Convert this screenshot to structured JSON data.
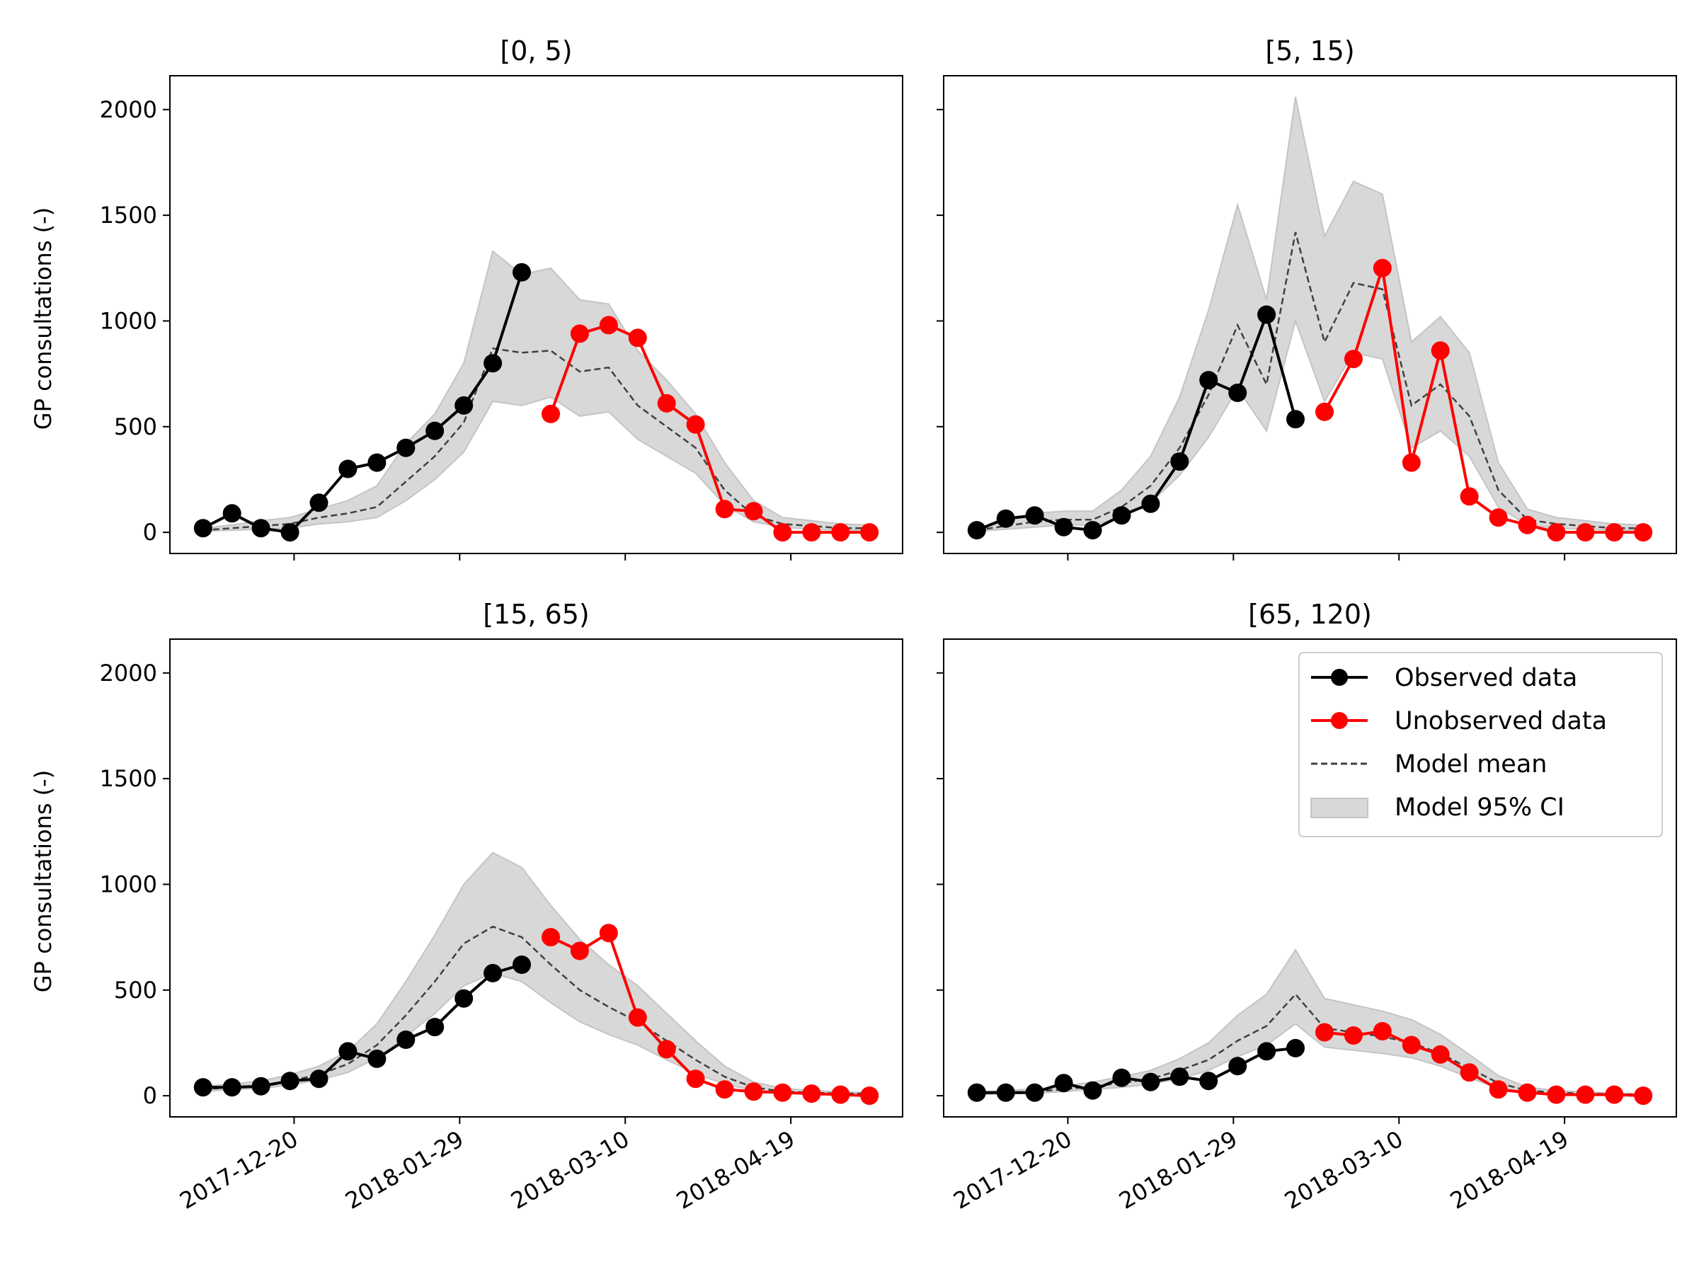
{
  "figure": {
    "ylabel": "GP consultations (-)",
    "legend": {
      "placement": "top-right",
      "entries": [
        "Observed data",
        "Unobserved data",
        "Model mean",
        "Model 95% CI"
      ]
    }
  },
  "colors": {
    "observed": "#000000",
    "unobserved": "#ff0000",
    "mean": "#404040",
    "ci": "#d8d8d8",
    "ci_edge": "#c4c4c4"
  },
  "axes": {
    "ylim": [
      -100,
      2160
    ],
    "yticks": [
      0,
      500,
      1000,
      1500,
      2000
    ],
    "xlim": [
      "2017-11-20",
      "2018-05-16"
    ],
    "xticks": [
      "2017-12-20",
      "2018-01-29",
      "2018-03-10",
      "2018-04-19"
    ],
    "grid": false
  },
  "chart_data": [
    {
      "type": "line",
      "title": "[0, 5)",
      "observed": {
        "x": [
          "2017-11-28",
          "2017-12-05",
          "2017-12-12",
          "2017-12-19",
          "2017-12-26",
          "2018-01-02",
          "2018-01-09",
          "2018-01-16",
          "2018-01-23",
          "2018-01-30",
          "2018-02-06",
          "2018-02-13"
        ],
        "y": [
          20,
          90,
          20,
          0,
          140,
          300,
          330,
          400,
          480,
          600,
          800,
          1230
        ]
      },
      "unobserved": {
        "x": [
          "2018-02-20",
          "2018-02-27",
          "2018-03-06",
          "2018-03-13",
          "2018-03-20",
          "2018-03-27",
          "2018-04-03",
          "2018-04-10",
          "2018-04-17",
          "2018-04-24",
          "2018-05-01",
          "2018-05-08"
        ],
        "y": [
          560,
          940,
          980,
          920,
          610,
          510,
          110,
          100,
          0,
          0,
          0,
          0
        ]
      },
      "model": {
        "x": [
          "2017-11-28",
          "2017-12-05",
          "2017-12-12",
          "2017-12-19",
          "2017-12-26",
          "2018-01-02",
          "2018-01-09",
          "2018-01-16",
          "2018-01-23",
          "2018-01-30",
          "2018-02-06",
          "2018-02-13",
          "2018-02-20",
          "2018-02-27",
          "2018-03-06",
          "2018-03-13",
          "2018-03-20",
          "2018-03-27",
          "2018-04-03",
          "2018-04-10",
          "2018-04-17",
          "2018-04-24",
          "2018-05-01",
          "2018-05-08"
        ],
        "mean": [
          10,
          20,
          30,
          40,
          70,
          90,
          120,
          240,
          360,
          520,
          870,
          850,
          860,
          760,
          780,
          600,
          500,
          400,
          200,
          80,
          40,
          30,
          20,
          20
        ],
        "lower": [
          5,
          10,
          15,
          20,
          40,
          50,
          70,
          150,
          250,
          380,
          620,
          600,
          640,
          550,
          570,
          440,
          360,
          280,
          130,
          50,
          25,
          15,
          10,
          10
        ],
        "upper": [
          20,
          35,
          55,
          70,
          110,
          150,
          220,
          420,
          560,
          800,
          1330,
          1220,
          1250,
          1100,
          1080,
          860,
          720,
          560,
          330,
          150,
          70,
          55,
          40,
          35
        ]
      }
    },
    {
      "type": "line",
      "title": "[5, 15)",
      "observed": {
        "x": [
          "2017-11-28",
          "2017-12-05",
          "2017-12-12",
          "2017-12-19",
          "2017-12-26",
          "2018-01-02",
          "2018-01-09",
          "2018-01-16",
          "2018-01-23",
          "2018-01-30",
          "2018-02-06",
          "2018-02-13"
        ],
        "y": [
          10,
          65,
          80,
          25,
          10,
          80,
          135,
          335,
          720,
          660,
          1030,
          535
        ]
      },
      "unobserved": {
        "x": [
          "2018-02-20",
          "2018-02-27",
          "2018-03-06",
          "2018-03-13",
          "2018-03-20",
          "2018-03-27",
          "2018-04-03",
          "2018-04-10",
          "2018-04-17",
          "2018-04-24",
          "2018-05-01",
          "2018-05-08"
        ],
        "y": [
          570,
          820,
          1250,
          330,
          860,
          170,
          70,
          35,
          0,
          0,
          0,
          0
        ]
      },
      "model": {
        "x": [
          "2017-11-28",
          "2017-12-05",
          "2017-12-12",
          "2017-12-19",
          "2017-12-26",
          "2018-01-02",
          "2018-01-09",
          "2018-01-16",
          "2018-01-23",
          "2018-01-30",
          "2018-02-06",
          "2018-02-13",
          "2018-02-20",
          "2018-02-27",
          "2018-03-06",
          "2018-03-13",
          "2018-03-20",
          "2018-03-27",
          "2018-04-03",
          "2018-04-10",
          "2018-04-17",
          "2018-04-24",
          "2018-05-01",
          "2018-05-08"
        ],
        "mean": [
          10,
          30,
          50,
          60,
          60,
          120,
          220,
          400,
          650,
          980,
          700,
          1420,
          900,
          1180,
          1150,
          600,
          700,
          550,
          200,
          60,
          40,
          30,
          20,
          20
        ],
        "lower": [
          5,
          15,
          25,
          35,
          35,
          70,
          140,
          270,
          450,
          680,
          480,
          1000,
          620,
          850,
          820,
          400,
          480,
          360,
          120,
          35,
          20,
          15,
          10,
          10
        ],
        "upper": [
          20,
          50,
          90,
          100,
          100,
          200,
          360,
          640,
          1050,
          1550,
          1100,
          2060,
          1400,
          1660,
          1600,
          900,
          1020,
          850,
          330,
          110,
          70,
          55,
          40,
          35
        ]
      }
    },
    {
      "type": "line",
      "title": "[15, 65)",
      "observed": {
        "x": [
          "2017-11-28",
          "2017-12-05",
          "2017-12-12",
          "2017-12-19",
          "2017-12-26",
          "2018-01-02",
          "2018-01-09",
          "2018-01-16",
          "2018-01-23",
          "2018-01-30",
          "2018-02-06",
          "2018-02-13"
        ],
        "y": [
          40,
          40,
          45,
          70,
          80,
          210,
          175,
          265,
          325,
          460,
          580,
          620
        ]
      },
      "unobserved": {
        "x": [
          "2018-02-20",
          "2018-02-27",
          "2018-03-06",
          "2018-03-13",
          "2018-03-20",
          "2018-03-27",
          "2018-04-03",
          "2018-04-10",
          "2018-04-17",
          "2018-04-24",
          "2018-05-01",
          "2018-05-08"
        ],
        "y": [
          750,
          685,
          770,
          370,
          220,
          80,
          30,
          20,
          15,
          10,
          5,
          0
        ]
      },
      "model": {
        "x": [
          "2017-11-28",
          "2017-12-05",
          "2017-12-12",
          "2017-12-19",
          "2017-12-26",
          "2018-01-02",
          "2018-01-09",
          "2018-01-16",
          "2018-01-23",
          "2018-01-30",
          "2018-02-06",
          "2018-02-13",
          "2018-02-20",
          "2018-02-27",
          "2018-03-06",
          "2018-03-13",
          "2018-03-20",
          "2018-03-27",
          "2018-04-03",
          "2018-04-10",
          "2018-04-17",
          "2018-04-24",
          "2018-05-01",
          "2018-05-08"
        ],
        "mean": [
          30,
          40,
          50,
          70,
          100,
          150,
          240,
          380,
          540,
          720,
          800,
          750,
          620,
          500,
          420,
          350,
          260,
          170,
          90,
          40,
          20,
          15,
          10,
          10
        ],
        "lower": [
          20,
          30,
          35,
          50,
          75,
          110,
          180,
          280,
          390,
          520,
          580,
          540,
          440,
          350,
          290,
          240,
          170,
          105,
          55,
          25,
          12,
          8,
          5,
          5
        ],
        "upper": [
          45,
          55,
          70,
          100,
          140,
          210,
          340,
          540,
          760,
          1000,
          1150,
          1080,
          900,
          740,
          620,
          520,
          390,
          260,
          140,
          65,
          35,
          25,
          18,
          15
        ]
      }
    },
    {
      "type": "line",
      "title": "[65, 120)",
      "observed": {
        "x": [
          "2017-11-28",
          "2017-12-05",
          "2017-12-12",
          "2017-12-19",
          "2017-12-26",
          "2018-01-02",
          "2018-01-09",
          "2018-01-16",
          "2018-01-23",
          "2018-01-30",
          "2018-02-06",
          "2018-02-13"
        ],
        "y": [
          15,
          15,
          15,
          60,
          25,
          85,
          65,
          90,
          70,
          140,
          210,
          225
        ]
      },
      "unobserved": {
        "x": [
          "2018-02-20",
          "2018-02-27",
          "2018-03-06",
          "2018-03-13",
          "2018-03-20",
          "2018-03-27",
          "2018-04-03",
          "2018-04-10",
          "2018-04-17",
          "2018-04-24",
          "2018-05-01",
          "2018-05-08"
        ],
        "y": [
          300,
          285,
          305,
          240,
          195,
          110,
          30,
          15,
          5,
          5,
          5,
          0
        ]
      },
      "model": {
        "x": [
          "2017-11-28",
          "2017-12-05",
          "2017-12-12",
          "2017-12-19",
          "2017-12-26",
          "2018-01-02",
          "2018-01-09",
          "2018-01-16",
          "2018-01-23",
          "2018-01-30",
          "2018-02-06",
          "2018-02-13",
          "2018-02-20",
          "2018-02-27",
          "2018-03-06",
          "2018-03-13",
          "2018-03-20",
          "2018-03-27",
          "2018-04-03",
          "2018-04-10",
          "2018-04-17",
          "2018-04-24",
          "2018-05-01",
          "2018-05-08"
        ],
        "mean": [
          10,
          15,
          20,
          30,
          45,
          60,
          80,
          120,
          170,
          260,
          330,
          480,
          320,
          300,
          280,
          250,
          200,
          130,
          60,
          25,
          15,
          10,
          8,
          5
        ],
        "lower": [
          5,
          10,
          12,
          20,
          30,
          40,
          55,
          80,
          120,
          185,
          240,
          340,
          230,
          215,
          200,
          180,
          140,
          85,
          35,
          15,
          8,
          5,
          4,
          3
        ],
        "upper": [
          18,
          25,
          32,
          45,
          65,
          90,
          120,
          175,
          250,
          380,
          480,
          690,
          460,
          430,
          400,
          360,
          290,
          195,
          95,
          40,
          25,
          18,
          12,
          10
        ]
      }
    }
  ]
}
